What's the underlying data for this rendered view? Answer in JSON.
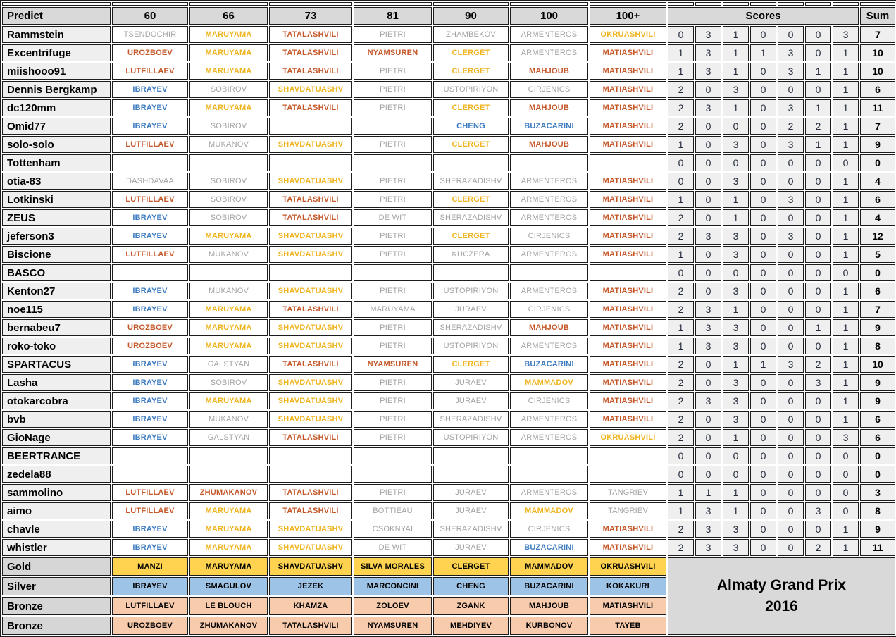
{
  "header": {
    "predict_label": "Predict",
    "weight_categories": [
      "60",
      "66",
      "73",
      "81",
      "90",
      "100",
      "100+"
    ],
    "scores_label": "Scores",
    "sum_label": "Sum"
  },
  "rows": [
    {
      "name": "Rammstein",
      "predictions": [
        "TSENDOCHIR",
        "MARUYAMA",
        "TATALASHVILI",
        "PIETRI",
        "ZHAMBEKOV",
        "ARMENTEROS",
        "OKRUASHVILI"
      ],
      "scores": [
        0,
        3,
        1,
        0,
        0,
        0,
        3
      ],
      "sum": 7
    },
    {
      "name": "Excentrifuge",
      "predictions": [
        "UROZBOEV",
        "MARUYAMA",
        "TATALASHVILI",
        "NYAMSUREN",
        "CLERGET",
        "ARMENTEROS",
        "MATIASHVILI"
      ],
      "scores": [
        1,
        3,
        1,
        1,
        3,
        0,
        1
      ],
      "sum": 10
    },
    {
      "name": "miishooo91",
      "predictions": [
        "LUTFILLAEV",
        "MARUYAMA",
        "TATALASHVILI",
        "PIETRI",
        "CLERGET",
        "MAHJOUB",
        "MATIASHVILI"
      ],
      "scores": [
        1,
        3,
        1,
        0,
        3,
        1,
        1
      ],
      "sum": 10
    },
    {
      "name": "Dennis Bergkamp",
      "predictions": [
        "IBRAYEV",
        "SOBIROV",
        "SHAVDATUASHV",
        "PIETRI",
        "USTOPIRIYON",
        "CIRJENICS",
        "MATIASHVILI"
      ],
      "scores": [
        2,
        0,
        3,
        0,
        0,
        0,
        1
      ],
      "sum": 6
    },
    {
      "name": "dc120mm",
      "predictions": [
        "IBRAYEV",
        "MARUYAMA",
        "TATALASHVILI",
        "PIETRI",
        "CLERGET",
        "MAHJOUB",
        "MATIASHVILI"
      ],
      "scores": [
        2,
        3,
        1,
        0,
        3,
        1,
        1
      ],
      "sum": 11
    },
    {
      "name": "Omid77",
      "predictions": [
        "IBRAYEV",
        "SOBIROV",
        "",
        "",
        "CHENG",
        "BUZACARINI",
        "MATIASHVILI"
      ],
      "scores": [
        2,
        0,
        0,
        0,
        2,
        2,
        1
      ],
      "sum": 7
    },
    {
      "name": "solo-solo",
      "predictions": [
        "LUTFILLAEV",
        "MUKANOV",
        "SHAVDATUASHV",
        "PIETRI",
        "CLERGET",
        "MAHJOUB",
        "MATIASHVILI"
      ],
      "scores": [
        1,
        0,
        3,
        0,
        3,
        1,
        1
      ],
      "sum": 9
    },
    {
      "name": "Tottenham",
      "predictions": [
        "",
        "",
        "",
        "",
        "",
        "",
        ""
      ],
      "scores": [
        0,
        0,
        0,
        0,
        0,
        0,
        0
      ],
      "sum": 0
    },
    {
      "name": "otia-83",
      "predictions": [
        "DASHDAVAA",
        "SOBIROV",
        "SHAVDATUASHV",
        "PIETRI",
        "SHERAZADISHV",
        "ARMENTEROS",
        "MATIASHVILI"
      ],
      "scores": [
        0,
        0,
        3,
        0,
        0,
        0,
        1
      ],
      "sum": 4
    },
    {
      "name": "Lotkinski",
      "predictions": [
        "LUTFILLAEV",
        "SOBIROV",
        "TATALASHVILI",
        "PIETRI",
        "CLERGET",
        "ARMENTEROS",
        "MATIASHVILI"
      ],
      "scores": [
        1,
        0,
        1,
        0,
        3,
        0,
        1
      ],
      "sum": 6
    },
    {
      "name": "ZEUS",
      "predictions": [
        "IBRAYEV",
        "SOBIROV",
        "TATALASHVILI",
        "DE WIT",
        "SHERAZADISHV",
        "ARMENTEROS",
        "MATIASHVILI"
      ],
      "scores": [
        2,
        0,
        1,
        0,
        0,
        0,
        1
      ],
      "sum": 4
    },
    {
      "name": "jeferson3",
      "predictions": [
        "IBRAYEV",
        "MARUYAMA",
        "SHAVDATUASHV",
        "PIETRI",
        "CLERGET",
        "CIRJENICS",
        "MATIASHVILI"
      ],
      "scores": [
        2,
        3,
        3,
        0,
        3,
        0,
        1
      ],
      "sum": 12
    },
    {
      "name": "Biscione",
      "predictions": [
        "LUTFILLAEV",
        "MUKANOV",
        "SHAVDATUASHV",
        "PIETRI",
        "KUCZERA",
        "ARMENTEROS",
        "MATIASHVILI"
      ],
      "scores": [
        1,
        0,
        3,
        0,
        0,
        0,
        1
      ],
      "sum": 5
    },
    {
      "name": "BASCO",
      "predictions": [
        "",
        "",
        "",
        "",
        "",
        "",
        ""
      ],
      "scores": [
        0,
        0,
        0,
        0,
        0,
        0,
        0
      ],
      "sum": 0
    },
    {
      "name": "Kenton27",
      "predictions": [
        "IBRAYEV",
        "MUKANOV",
        "SHAVDATUASHV",
        "PIETRI",
        "USTOPIRIYON",
        "ARMENTEROS",
        "MATIASHVILI"
      ],
      "scores": [
        2,
        0,
        3,
        0,
        0,
        0,
        1
      ],
      "sum": 6
    },
    {
      "name": "noe115",
      "predictions": [
        "IBRAYEV",
        "MARUYAMA",
        "TATALASHVILI",
        "MARUYAMA",
        "JURAEV",
        "CIRJENICS",
        "MATIASHVILI"
      ],
      "scores": [
        2,
        3,
        1,
        0,
        0,
        0,
        1
      ],
      "sum": 7
    },
    {
      "name": "bernabeu7",
      "predictions": [
        "UROZBOEV",
        "MARUYAMA",
        "SHAVDATUASHV",
        "PIETRI",
        "SHERAZADISHV",
        "MAHJOUB",
        "MATIASHVILI"
      ],
      "scores": [
        1,
        3,
        3,
        0,
        0,
        1,
        1
      ],
      "sum": 9
    },
    {
      "name": "roko-toko",
      "predictions": [
        "UROZBOEV",
        "MARUYAMA",
        "SHAVDATUASHV",
        "PIETRI",
        "USTOPIRIYON",
        "ARMENTEROS",
        "MATIASHVILI"
      ],
      "scores": [
        1,
        3,
        3,
        0,
        0,
        0,
        1
      ],
      "sum": 8
    },
    {
      "name": "SPARTACUS",
      "predictions": [
        "IBRAYEV",
        "GALSTYAN",
        "TATALASHVILI",
        "NYAMSUREN",
        "CLERGET",
        "BUZACARINI",
        "MATIASHVILI"
      ],
      "scores": [
        2,
        0,
        1,
        1,
        3,
        2,
        1
      ],
      "sum": 10
    },
    {
      "name": "Lasha",
      "predictions": [
        "IBRAYEV",
        "SOBIROV",
        "SHAVDATUASHV",
        "PIETRI",
        "JURAEV",
        "MAMMADOV",
        "MATIASHVILI"
      ],
      "scores": [
        2,
        0,
        3,
        0,
        0,
        3,
        1
      ],
      "sum": 9
    },
    {
      "name": "otokarcobra",
      "predictions": [
        "IBRAYEV",
        "MARUYAMA",
        "SHAVDATUASHV",
        "PIETRI",
        "JURAEV",
        "CIRJENICS",
        "MATIASHVILI"
      ],
      "scores": [
        2,
        3,
        3,
        0,
        0,
        0,
        1
      ],
      "sum": 9
    },
    {
      "name": "bvb",
      "predictions": [
        "IBRAYEV",
        "MUKANOV",
        "SHAVDATUASHV",
        "PIETRI",
        "SHERAZADISHV",
        "ARMENTEROS",
        "MATIASHVILI"
      ],
      "scores": [
        2,
        0,
        3,
        0,
        0,
        0,
        1
      ],
      "sum": 6
    },
    {
      "name": "GioNage",
      "predictions": [
        "IBRAYEV",
        "GALSTYAN",
        "TATALASHVILI",
        "PIETRI",
        "USTOPIRIYON",
        "ARMENTEROS",
        "OKRUASHVILI"
      ],
      "scores": [
        2,
        0,
        1,
        0,
        0,
        0,
        3
      ],
      "sum": 6
    },
    {
      "name": "BEERTRANCE",
      "predictions": [
        "",
        "",
        "",
        "",
        "",
        "",
        ""
      ],
      "scores": [
        0,
        0,
        0,
        0,
        0,
        0,
        0
      ],
      "sum": 0
    },
    {
      "name": "zedela88",
      "predictions": [
        "",
        "",
        "",
        "",
        "",
        "",
        ""
      ],
      "scores": [
        0,
        0,
        0,
        0,
        0,
        0,
        0
      ],
      "sum": 0
    },
    {
      "name": "sammolino",
      "predictions": [
        "LUTFILLAEV",
        "ZHUMAKANOV",
        "TATALASHVILI",
        "PIETRI",
        "JURAEV",
        "ARMENTEROS",
        "TANGRIEV"
      ],
      "scores": [
        1,
        1,
        1,
        0,
        0,
        0,
        0
      ],
      "sum": 3
    },
    {
      "name": "aimo",
      "predictions": [
        "LUTFILLAEV",
        "MARUYAMA",
        "TATALASHVILI",
        "BOTTIEAU",
        "JURAEV",
        "MAMMADOV",
        "TANGRIEV"
      ],
      "scores": [
        1,
        3,
        1,
        0,
        0,
        3,
        0
      ],
      "sum": 8
    },
    {
      "name": "chavle",
      "predictions": [
        "IBRAYEV",
        "MARUYAMA",
        "SHAVDATUASHV",
        "CSOKNYAI",
        "SHERAZADISHV",
        "CIRJENICS",
        "MATIASHVILI"
      ],
      "scores": [
        2,
        3,
        3,
        0,
        0,
        0,
        1
      ],
      "sum": 9
    },
    {
      "name": "whistler",
      "predictions": [
        "IBRAYEV",
        "MARUYAMA",
        "SHAVDATUASHV",
        "DE WIT",
        "JURAEV",
        "BUZACARINI",
        "MATIASHVILI"
      ],
      "scores": [
        2,
        3,
        3,
        0,
        0,
        2,
        1
      ],
      "sum": 11
    }
  ],
  "medal_rows": [
    {
      "label": "Gold",
      "medal": "gold",
      "names": [
        "MANZI",
        "MARUYAMA",
        "SHAVDATUASHV",
        "SILVA MORALES",
        "CLERGET",
        "MAMMADOV",
        "OKRUASHVILI"
      ]
    },
    {
      "label": "Silver",
      "medal": "silver",
      "names": [
        "IBRAYEV",
        "SMAGULOV",
        "JEZEK",
        "MARCONCINI",
        "CHENG",
        "BUZACARINI",
        "KOKAKURI"
      ]
    },
    {
      "label": "Bronze",
      "medal": "bronze",
      "names": [
        "LUTFILLAEV",
        "LE BLOUCH",
        "KHAMZA",
        "ZOLOEV",
        "ZGANK",
        "MAHJOUB",
        "MATIASHVILI"
      ]
    },
    {
      "label": "Bronze",
      "medal": "bronze",
      "names": [
        "UROZBOEV",
        "ZHUMAKANOV",
        "TATALASHVILI",
        "NYAMSUREN",
        "MEHDIYEV",
        "KURBONOV",
        "TAYEB"
      ]
    }
  ],
  "event_title": {
    "line1": "Almaty Grand Prix",
    "line2": "2016"
  },
  "colors": {
    "gold_text": "#EFB520",
    "silver_text": "#3E7CC1",
    "bronze_text": "#C4582A",
    "none_text": "#A3A3A3",
    "score_text": "#232A3A",
    "gold_bg": "#FFD350",
    "silver_bg": "#9DC3E6",
    "bronze_bg": "#F8CBAD",
    "header_bg": "#D9D9D9",
    "label_bg": "#EFEFEF",
    "medal_label_bg": "#D6D6D6",
    "border": "#1C1C1C"
  }
}
